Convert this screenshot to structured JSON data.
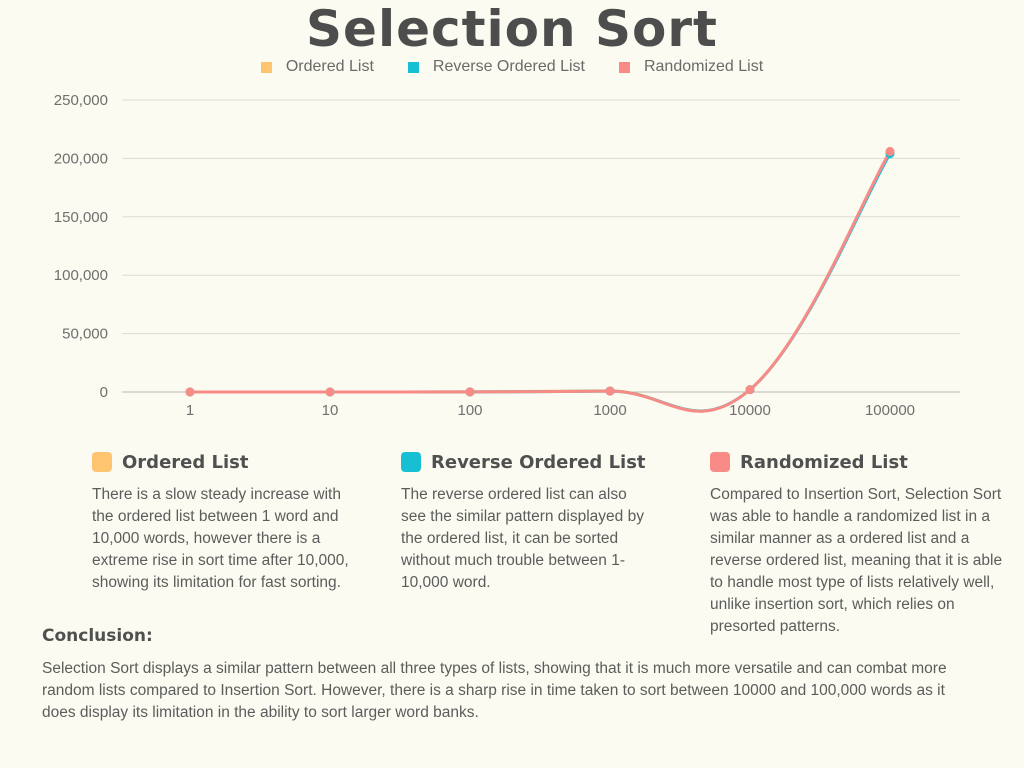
{
  "chart_data": {
    "type": "line",
    "title": "Selection Sort",
    "categories": [
      "1",
      "10",
      "100",
      "1000",
      "10000",
      "100000"
    ],
    "ylim": [
      0,
      250000
    ],
    "yticks": [
      "0",
      "50,000",
      "100,000",
      "150,000",
      "200,000",
      "250,000"
    ],
    "ytick_values": [
      0,
      50000,
      100000,
      150000,
      200000,
      250000
    ],
    "grid": true,
    "legend_position": "top-center",
    "series": [
      {
        "name": "Ordered List",
        "color": "#fec46f",
        "values": [
          0,
          0,
          100,
          1000,
          2000,
          205000
        ]
      },
      {
        "name": "Reverse Ordered List",
        "color": "#16bfd2",
        "values": [
          0,
          0,
          100,
          800,
          2000,
          204000
        ]
      },
      {
        "name": "Randomized List",
        "color": "#f98b86",
        "values": [
          0,
          0,
          100,
          700,
          2000,
          206000
        ]
      }
    ]
  },
  "sections": [
    {
      "title": "Ordered List",
      "color": "#fec46f",
      "text": "There is a slow steady increase with the ordered list between 1 word and 10,000 words, however there is a extreme rise in sort time after 10,000, showing its limitation for fast sorting."
    },
    {
      "title": "Reverse Ordered List",
      "color": "#16bfd2",
      "text": "The reverse ordered list can also see the similar pattern displayed by the ordered list, it can be sorted without much trouble between 1-10,000 word."
    },
    {
      "title": "Randomized List",
      "color": "#f98b86",
      "text": "Compared to Insertion Sort, Selection Sort was able to handle a randomized list in a similar manner as a ordered list and a reverse ordered list, meaning that it is able to handle most type of lists relatively well, unlike insertion sort, which relies on presorted patterns."
    }
  ],
  "conclusion": {
    "title": "Conclusion:",
    "text": "Selection Sort displays a similar pattern between all three types of lists, showing that it is much more versatile and can combat more random lists compared to Insertion Sort. However, there is a sharp rise in time taken to sort between 10000 and 100,000 words as it does display its limitation in the ability to sort larger word banks."
  }
}
